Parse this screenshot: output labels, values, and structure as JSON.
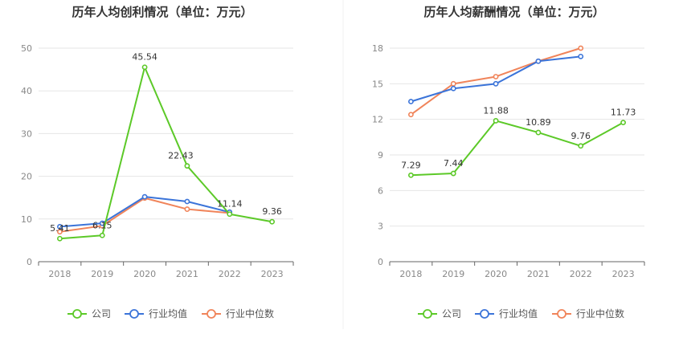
{
  "colors": {
    "company": "#5cc928",
    "industry_avg": "#3b74d9",
    "industry_median": "#f0845a",
    "grid": "#e6e6e6",
    "axis": "#666666",
    "tick_text": "#888888",
    "label_text": "#333333",
    "title_text": "#333333"
  },
  "chart_data": [
    {
      "type": "line",
      "title": "历年人均创利情况（单位：万元）",
      "categories": [
        "2018",
        "2019",
        "2020",
        "2021",
        "2022",
        "2023"
      ],
      "yticks": [
        0,
        10,
        20,
        30,
        40,
        50
      ],
      "ylim": [
        0,
        50
      ],
      "grid": true,
      "legend_position": "bottom",
      "series": [
        {
          "name": "公司",
          "values": [
            5.41,
            6.15,
            45.54,
            22.43,
            11.14,
            9.36
          ],
          "labels": [
            "5.41",
            "6.15",
            "45.54",
            "22.43",
            "11.14",
            "9.36"
          ]
        },
        {
          "name": "行业均值",
          "values": [
            8.2,
            9.0,
            15.2,
            14.1,
            11.6,
            null
          ]
        },
        {
          "name": "行业中位数",
          "values": [
            7.0,
            8.4,
            14.9,
            12.3,
            11.4,
            null
          ]
        }
      ]
    },
    {
      "type": "line",
      "title": "历年人均薪酬情况（单位：万元）",
      "categories": [
        "2018",
        "2019",
        "2020",
        "2021",
        "2022",
        "2023"
      ],
      "yticks": [
        0,
        3,
        6,
        9,
        12,
        15,
        18
      ],
      "ylim": [
        0,
        18
      ],
      "grid": true,
      "legend_position": "bottom",
      "series": [
        {
          "name": "公司",
          "values": [
            7.29,
            7.44,
            11.88,
            10.89,
            9.76,
            11.73
          ],
          "labels": [
            "7.29",
            "7.44",
            "11.88",
            "10.89",
            "9.76",
            "11.73"
          ]
        },
        {
          "name": "行业均值",
          "values": [
            13.5,
            14.6,
            15.0,
            16.9,
            17.3,
            null
          ]
        },
        {
          "name": "行业中位数",
          "values": [
            12.4,
            15.0,
            15.6,
            16.9,
            18.0,
            null
          ]
        }
      ]
    }
  ]
}
